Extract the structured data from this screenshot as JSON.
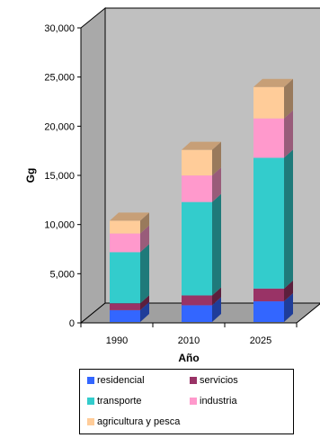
{
  "chart_data": {
    "type": "bar",
    "stacked": true,
    "three_d": true,
    "categories": [
      "1990",
      "2010",
      "2025"
    ],
    "series": [
      {
        "name": "residencial",
        "color": "#3366FF",
        "values": [
          1200,
          1700,
          2100
        ]
      },
      {
        "name": "servicios",
        "color": "#993366",
        "values": [
          700,
          1000,
          1300
        ]
      },
      {
        "name": "transporte",
        "color": "#33CCCC",
        "values": [
          5200,
          9500,
          13300
        ]
      },
      {
        "name": "industria",
        "color": "#FF99CC",
        "values": [
          1900,
          2700,
          4000
        ]
      },
      {
        "name": "agricultura y pesca",
        "color": "#FFCC99",
        "values": [
          1300,
          2600,
          3200
        ]
      }
    ],
    "xlabel": "Año",
    "ylabel": "Gg",
    "ylim": [
      0,
      30000
    ],
    "yticks": [
      "0",
      "5,000",
      "10,000",
      "15,000",
      "20,000",
      "25,000",
      "30,000"
    ],
    "grid": false,
    "legend_position": "bottom",
    "wall_color": "#C0C0C0"
  }
}
